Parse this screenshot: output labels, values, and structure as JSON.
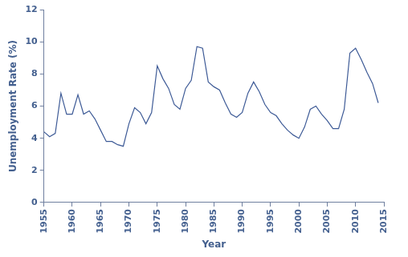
{
  "chart_data": {
    "type": "line",
    "x_label": "Year",
    "y_label": "Unemployment Rate (%)",
    "x": [
      1955,
      1956,
      1957,
      1958,
      1959,
      1960,
      1961,
      1962,
      1963,
      1964,
      1965,
      1966,
      1967,
      1968,
      1969,
      1970,
      1971,
      1972,
      1973,
      1974,
      1975,
      1976,
      1977,
      1978,
      1979,
      1980,
      1981,
      1982,
      1983,
      1984,
      1985,
      1986,
      1987,
      1988,
      1989,
      1990,
      1991,
      1992,
      1993,
      1994,
      1995,
      1996,
      1997,
      1998,
      1999,
      2000,
      2001,
      2002,
      2003,
      2004,
      2005,
      2006,
      2007,
      2008,
      2009,
      2010,
      2011,
      2012,
      2013,
      2014
    ],
    "values": [
      4.4,
      4.1,
      4.3,
      6.8,
      5.5,
      5.5,
      6.7,
      5.5,
      5.7,
      5.2,
      4.5,
      3.8,
      3.8,
      3.6,
      3.5,
      4.9,
      5.9,
      5.6,
      4.9,
      5.6,
      8.5,
      7.7,
      7.1,
      6.1,
      5.8,
      7.1,
      7.6,
      9.7,
      9.6,
      7.5,
      7.2,
      7.0,
      6.2,
      5.5,
      5.3,
      5.6,
      6.8,
      7.5,
      6.9,
      6.1,
      5.6,
      5.4,
      4.9,
      4.5,
      4.2,
      4.0,
      4.7,
      5.8,
      6.0,
      5.5,
      5.1,
      4.6,
      4.6,
      5.8,
      9.3,
      9.6,
      8.9,
      8.1,
      7.4,
      6.2
    ],
    "color": "#3d5a96",
    "xlim": [
      1955,
      2015
    ],
    "xticks": [
      1955,
      1960,
      1965,
      1970,
      1975,
      1980,
      1985,
      1990,
      1995,
      2000,
      2005,
      2010,
      2015
    ],
    "ylim": [
      0,
      12
    ],
    "yticks": [
      0,
      2,
      4,
      6,
      8,
      10,
      12
    ],
    "grid": false
  }
}
